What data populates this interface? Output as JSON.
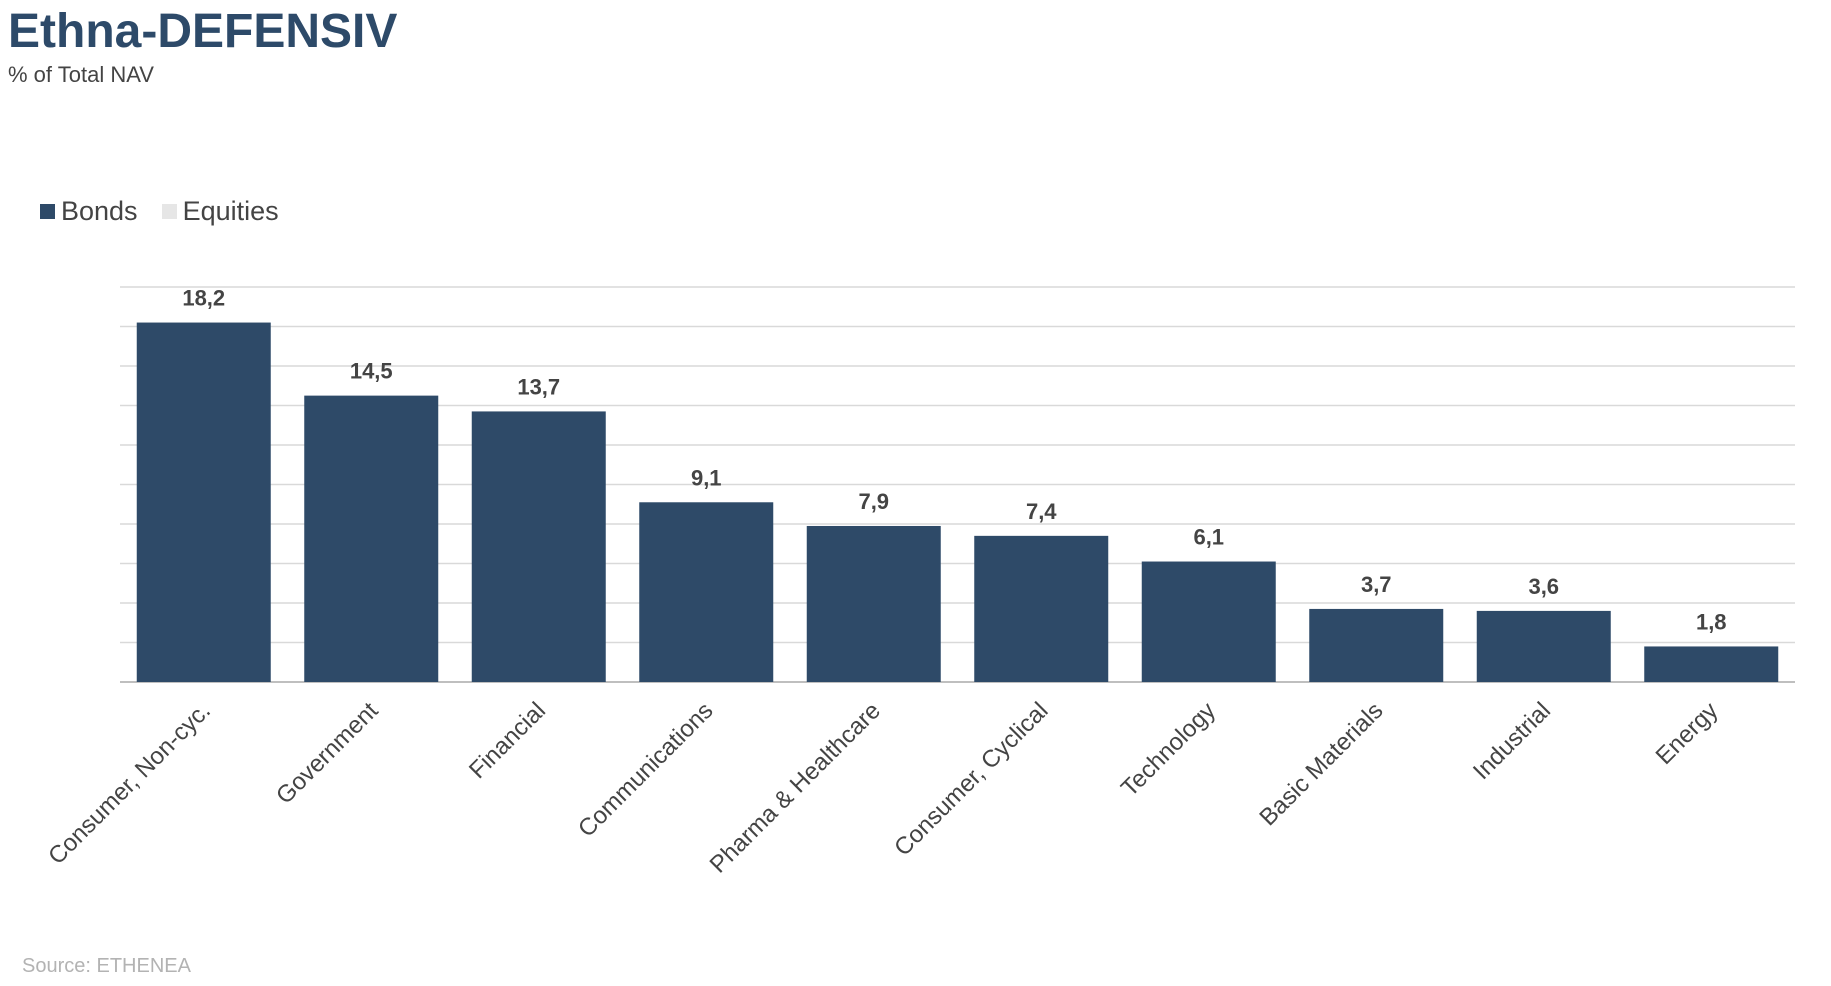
{
  "header": {
    "title": "Ethna-DEFENSIV",
    "subtitle": "% of Total NAV"
  },
  "legend": [
    {
      "label": "Bonds",
      "color": "#2e4a68"
    },
    {
      "label": "Equities",
      "color": "#e6e6e6"
    }
  ],
  "footer": {
    "source": "Source: ETHENEA"
  },
  "chart_data": {
    "type": "bar",
    "title": "Ethna-DEFENSIV",
    "subtitle": "% of Total NAV",
    "categories": [
      "Consumer, Non-cyc.",
      "Government",
      "Financial",
      "Communications",
      "Pharma & Healthcare",
      "Consumer, Cyclical",
      "Technology",
      "Basic Materials",
      "Industrial",
      "Energy"
    ],
    "series": [
      {
        "name": "Bonds",
        "color": "#2e4a68",
        "values": [
          18.2,
          14.5,
          13.7,
          9.1,
          7.9,
          7.4,
          6.1,
          3.7,
          3.6,
          1.8
        ]
      },
      {
        "name": "Equities",
        "color": "#e6e6e6",
        "values": [
          0,
          0,
          0,
          0,
          0,
          0,
          0,
          0,
          0,
          0
        ]
      }
    ],
    "data_labels": [
      "18,2",
      "14,5",
      "13,7",
      "9,1",
      "7,9",
      "7,4",
      "6,1",
      "3,7",
      "3,6",
      "1,8"
    ],
    "ylim": [
      0,
      20
    ],
    "grid": true,
    "legend_position": "top-left",
    "y_axis_labels_visible": false
  }
}
